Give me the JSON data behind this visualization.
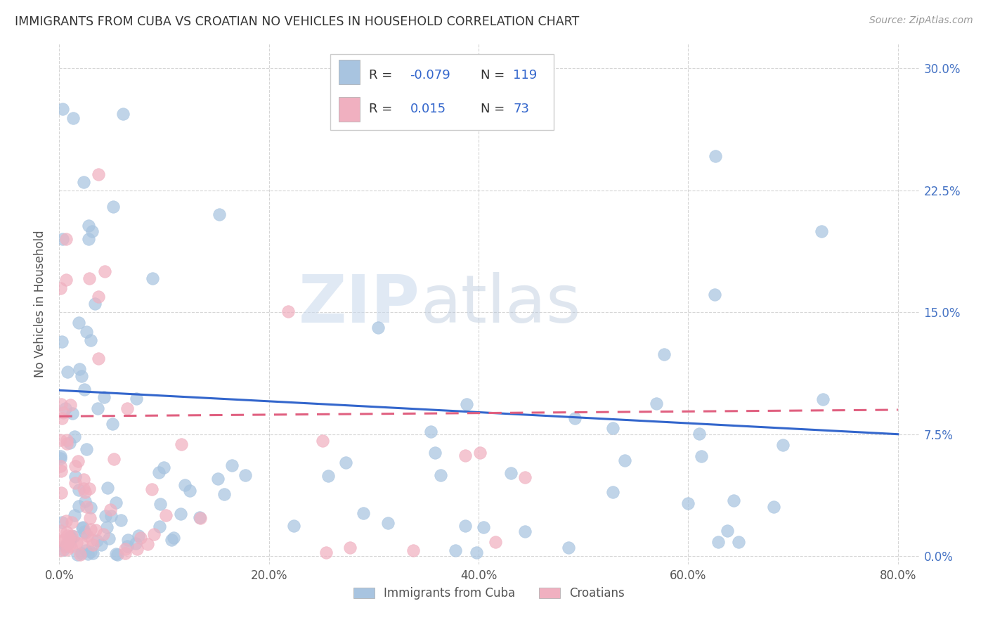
{
  "title": "IMMIGRANTS FROM CUBA VS CROATIAN NO VEHICLES IN HOUSEHOLD CORRELATION CHART",
  "source": "Source: ZipAtlas.com",
  "xlabel_ticks": [
    "0.0%",
    "20.0%",
    "40.0%",
    "60.0%",
    "80.0%"
  ],
  "xlabel_tick_vals": [
    0.0,
    0.2,
    0.4,
    0.6,
    0.8
  ],
  "ylabel_ticks": [
    "0.0%",
    "7.5%",
    "15.0%",
    "22.5%",
    "30.0%"
  ],
  "ylabel_tick_vals": [
    0.0,
    0.075,
    0.15,
    0.225,
    0.3
  ],
  "ylabel": "No Vehicles in Household",
  "legend_labels": [
    "Immigrants from Cuba",
    "Croatians"
  ],
  "cuba_color": "#a8c4e0",
  "croat_color": "#f0b0c0",
  "cuba_line_color": "#3366cc",
  "croat_line_color": "#e06080",
  "watermark_zip": "ZIP",
  "watermark_atlas": "atlas",
  "xlim": [
    0.0,
    0.82
  ],
  "ylim": [
    -0.005,
    0.315
  ],
  "background_color": "#ffffff",
  "grid_color": "#cccccc",
  "right_tick_color": "#4472c4",
  "legend_text_color": "#333333",
  "legend_stat_color": "#3366cc"
}
